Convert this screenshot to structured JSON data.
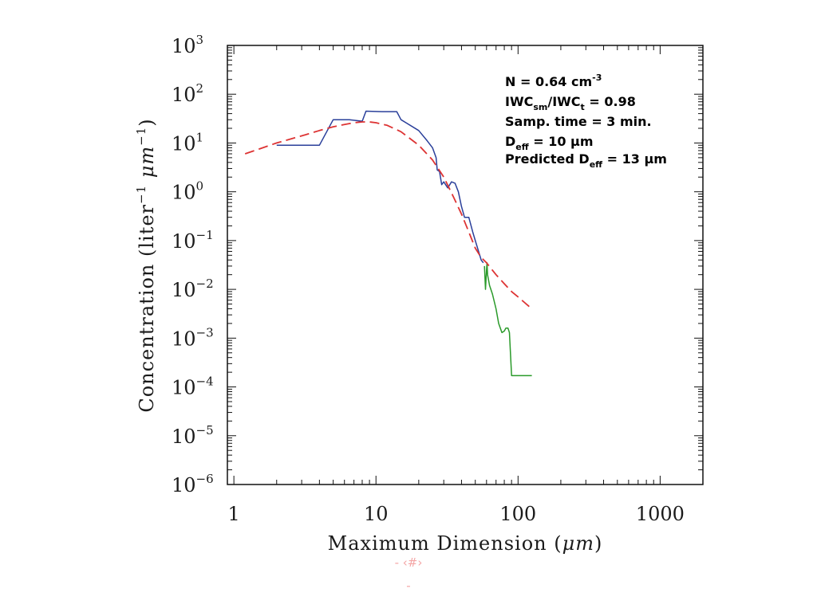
{
  "chart_data": {
    "type": "line",
    "xlabel_main": "Maximum Dimension (",
    "xlabel_unit": "μm",
    "xlabel_end": ")",
    "ylabel_main": "Concentration (liter",
    "ylabel_unit": "μm",
    "x_scale": "log",
    "y_scale": "log",
    "xlim": [
      0.9,
      2000
    ],
    "ylim": [
      1e-06,
      1000
    ],
    "x_ticks": [
      {
        "value": 1,
        "label": "1"
      },
      {
        "value": 10,
        "label": "10"
      },
      {
        "value": 100,
        "label": "100"
      },
      {
        "value": 1000,
        "label": "1000"
      }
    ],
    "y_ticks": [
      {
        "value": 1000,
        "exp": "3"
      },
      {
        "value": 100,
        "exp": "2"
      },
      {
        "value": 10,
        "exp": "1"
      },
      {
        "value": 1,
        "exp": "0"
      },
      {
        "value": 0.1,
        "exp": "−1"
      },
      {
        "value": 0.01,
        "exp": "−2"
      },
      {
        "value": 0.001,
        "exp": "−3"
      },
      {
        "value": 0.0001,
        "exp": "−4"
      },
      {
        "value": 1e-05,
        "exp": "−5"
      },
      {
        "value": 1e-06,
        "exp": "−6"
      }
    ],
    "y_base": "10",
    "grid": false,
    "series": [
      {
        "color": "#2a3f9a",
        "style": "solid",
        "x": [
          2.0,
          4.0,
          5.0,
          6.5,
          8.0,
          8.5,
          11.0,
          14.0,
          15.0,
          20.0,
          23.0,
          25.0,
          26.5,
          27.0,
          28.0,
          29.0,
          30.0,
          32.0,
          34.0,
          36.0,
          38.0,
          40.0,
          42.0,
          45.0,
          48.0,
          50.0,
          55.0,
          57.0
        ],
        "y": [
          9,
          9,
          30,
          30,
          28,
          45,
          44,
          44,
          30,
          18,
          11,
          8,
          5.0,
          2.8,
          2.6,
          1.4,
          1.6,
          1.2,
          1.6,
          1.5,
          1.0,
          0.5,
          0.3,
          0.3,
          0.15,
          0.1,
          0.04,
          0.035
        ]
      },
      {
        "color": "#2a9a2a",
        "style": "solid",
        "x": [
          58.0,
          59.0,
          60.0,
          60.5,
          61.0,
          63.0,
          66.0,
          70.0,
          73.0,
          77.0,
          80.0,
          82.0,
          85.0,
          87.0,
          90.0,
          100.0,
          110.0,
          125.0
        ],
        "y": [
          0.03,
          0.01,
          0.025,
          0.035,
          0.02,
          0.012,
          0.008,
          0.004,
          0.002,
          0.0013,
          0.0014,
          0.0016,
          0.0016,
          0.0013,
          0.00017,
          0.00017,
          0.00017,
          0.00017
        ]
      },
      {
        "color": "#dd3333",
        "style": "dashed",
        "x": [
          1.2,
          1.5,
          2.0,
          3.0,
          4.0,
          5.0,
          6.0,
          7.0,
          8.0,
          9.0,
          10.0,
          12.0,
          15.0,
          20.0,
          25.0,
          30.0,
          35.0,
          40.0,
          45.0,
          50.0,
          55.0,
          60.0,
          70.0,
          80.0,
          90.0,
          100.0,
          110.0,
          125.0
        ],
        "y": [
          6,
          7.5,
          10,
          14,
          18,
          21.5,
          24,
          26,
          27,
          27,
          26,
          23,
          17,
          9,
          4.5,
          2.0,
          0.8,
          0.35,
          0.15,
          0.07,
          0.045,
          0.035,
          0.02,
          0.013,
          0.009,
          0.007,
          0.0055,
          0.004
        ]
      }
    ],
    "annotations": [
      {
        "base": "N = 0.64 cm",
        "sup": "-3"
      },
      {
        "base": "IWC",
        "sub": "sm",
        "base2": "/IWC",
        "sub2": "t",
        "base3": " = 0.98"
      },
      {
        "base": "Samp. time = 3 min."
      },
      {
        "base": "D",
        "sub": "eff",
        "base2": " = 10 μm"
      },
      {
        "base": "Predicted D",
        "sub": "eff",
        "base2": " = 13 μm"
      }
    ]
  },
  "footer": {
    "line1": "- ‹#›",
    "line2": "-"
  }
}
